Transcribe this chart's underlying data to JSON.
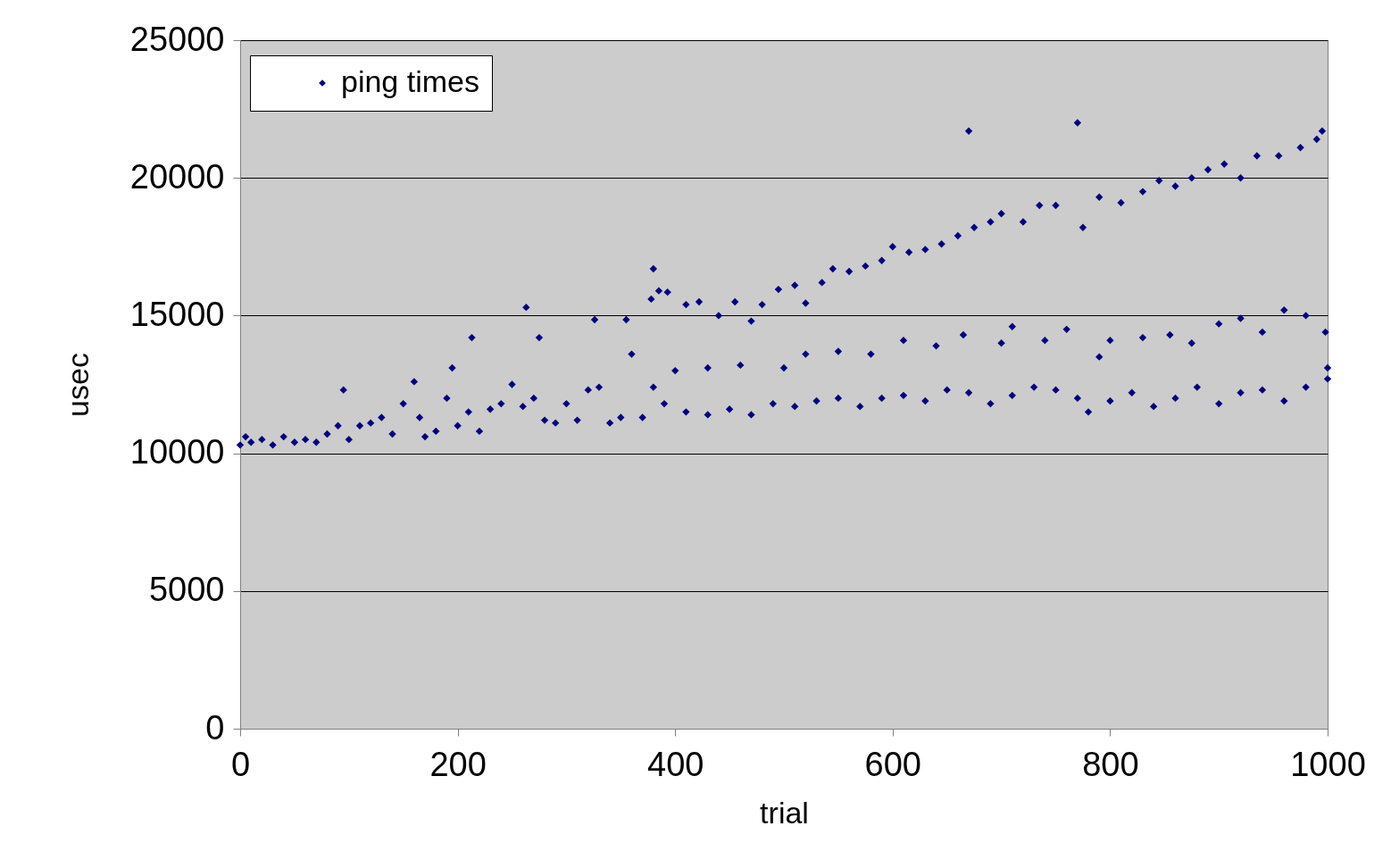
{
  "chart_data": {
    "type": "scatter",
    "xlabel": "trial",
    "ylabel": "usec",
    "xlim": [
      0,
      1000
    ],
    "ylim": [
      0,
      25000
    ],
    "xticks": [
      0,
      200,
      400,
      600,
      800,
      1000
    ],
    "yticks": [
      0,
      5000,
      10000,
      15000,
      20000,
      25000
    ],
    "grid": "y",
    "legend": "top left",
    "marker": "diamond",
    "x": [
      263,
      326,
      355,
      380,
      385,
      393,
      378,
      410,
      422,
      440,
      455,
      470,
      480,
      495,
      510,
      520,
      535,
      545,
      560,
      575,
      590,
      600,
      615,
      630,
      645,
      660,
      670,
      675,
      690,
      700,
      720,
      735,
      750,
      770,
      775,
      790,
      810,
      830,
      845,
      860,
      875,
      890,
      905,
      920,
      935,
      955,
      975,
      990,
      995,
      330,
      360,
      400,
      430,
      460,
      500,
      520,
      550,
      580,
      610,
      640,
      665,
      700,
      710,
      740,
      760,
      790,
      800,
      830,
      855,
      875,
      900,
      920,
      940,
      960,
      980,
      998,
      0,
      5,
      10,
      20,
      30,
      40,
      50,
      60,
      70,
      80,
      90,
      95,
      100,
      110,
      120,
      130,
      140,
      150,
      160,
      165,
      170,
      180,
      190,
      195,
      200,
      210,
      213,
      220,
      230,
      240,
      250,
      260,
      270,
      275,
      280,
      290,
      300,
      310,
      320,
      340,
      350,
      370,
      380,
      390,
      410,
      430,
      450,
      470,
      490,
      510,
      530,
      550,
      570,
      590,
      610,
      630,
      650,
      670,
      690,
      710,
      730,
      750,
      770,
      780,
      800,
      820,
      840,
      860,
      880,
      900,
      920,
      940,
      960,
      980,
      1000,
      1000
    ],
    "series": [
      {
        "name": "ping times",
        "color": "#000080",
        "values": [
          15300,
          14850,
          14850,
          16700,
          15900,
          15850,
          15600,
          15400,
          15500,
          15000,
          15500,
          14800,
          15400,
          15950,
          16100,
          15450,
          16200,
          16700,
          16600,
          16800,
          17000,
          17500,
          17300,
          17400,
          17600,
          17900,
          21700,
          18200,
          18400,
          18700,
          18400,
          19000,
          19000,
          22000,
          18200,
          19300,
          19100,
          19500,
          19900,
          19700,
          20000,
          20300,
          20500,
          20000,
          20800,
          20800,
          21100,
          21400,
          21700,
          12400,
          13600,
          13000,
          13100,
          13200,
          13100,
          13600,
          13700,
          13600,
          14100,
          13900,
          14300,
          14000,
          14600,
          14100,
          14500,
          13500,
          14100,
          14200,
          14300,
          14000,
          14700,
          14900,
          14400,
          15200,
          15000,
          14400,
          10300,
          10600,
          10400,
          10500,
          10300,
          10600,
          10400,
          10500,
          10400,
          10700,
          11000,
          12300,
          10500,
          11000,
          11100,
          11300,
          10700,
          11800,
          12600,
          11300,
          10600,
          10800,
          12000,
          13100,
          11000,
          11500,
          14200,
          10800,
          11600,
          11800,
          12500,
          11700,
          12000,
          14200,
          11200,
          11100,
          11800,
          11200,
          12300,
          11100,
          11300,
          11300,
          12400,
          11800,
          11500,
          11400,
          11600,
          11400,
          11800,
          11700,
          11900,
          12000,
          11700,
          12000,
          12100,
          11900,
          12300,
          12200,
          11800,
          12100,
          12400,
          12300,
          12000,
          11500,
          11900,
          12200,
          11700,
          12000,
          12400,
          11800,
          12200,
          12300,
          11900,
          12400,
          12700,
          13100
        ]
      }
    ]
  }
}
